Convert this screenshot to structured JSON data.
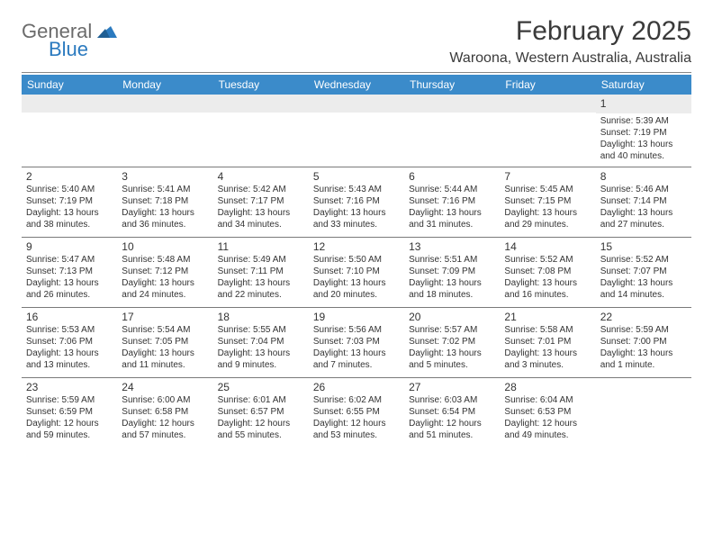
{
  "logo": {
    "word1": "General",
    "word2": "Blue"
  },
  "title": "February 2025",
  "location": "Waroona, Western Australia, Australia",
  "colors": {
    "header_bg": "#3b8bca",
    "header_text": "#ffffff",
    "shade_bg": "#ececec",
    "rule": "#7a7a7a",
    "text": "#333333",
    "logo_gray": "#6b6b6b",
    "logo_blue": "#2b7abf"
  },
  "day_headers": [
    "Sunday",
    "Monday",
    "Tuesday",
    "Wednesday",
    "Thursday",
    "Friday",
    "Saturday"
  ],
  "weeks": [
    [
      null,
      null,
      null,
      null,
      null,
      null,
      {
        "n": "1",
        "sr": "Sunrise: 5:39 AM",
        "ss": "Sunset: 7:19 PM",
        "dl": "Daylight: 13 hours and 40 minutes."
      }
    ],
    [
      {
        "n": "2",
        "sr": "Sunrise: 5:40 AM",
        "ss": "Sunset: 7:19 PM",
        "dl": "Daylight: 13 hours and 38 minutes."
      },
      {
        "n": "3",
        "sr": "Sunrise: 5:41 AM",
        "ss": "Sunset: 7:18 PM",
        "dl": "Daylight: 13 hours and 36 minutes."
      },
      {
        "n": "4",
        "sr": "Sunrise: 5:42 AM",
        "ss": "Sunset: 7:17 PM",
        "dl": "Daylight: 13 hours and 34 minutes."
      },
      {
        "n": "5",
        "sr": "Sunrise: 5:43 AM",
        "ss": "Sunset: 7:16 PM",
        "dl": "Daylight: 13 hours and 33 minutes."
      },
      {
        "n": "6",
        "sr": "Sunrise: 5:44 AM",
        "ss": "Sunset: 7:16 PM",
        "dl": "Daylight: 13 hours and 31 minutes."
      },
      {
        "n": "7",
        "sr": "Sunrise: 5:45 AM",
        "ss": "Sunset: 7:15 PM",
        "dl": "Daylight: 13 hours and 29 minutes."
      },
      {
        "n": "8",
        "sr": "Sunrise: 5:46 AM",
        "ss": "Sunset: 7:14 PM",
        "dl": "Daylight: 13 hours and 27 minutes."
      }
    ],
    [
      {
        "n": "9",
        "sr": "Sunrise: 5:47 AM",
        "ss": "Sunset: 7:13 PM",
        "dl": "Daylight: 13 hours and 26 minutes."
      },
      {
        "n": "10",
        "sr": "Sunrise: 5:48 AM",
        "ss": "Sunset: 7:12 PM",
        "dl": "Daylight: 13 hours and 24 minutes."
      },
      {
        "n": "11",
        "sr": "Sunrise: 5:49 AM",
        "ss": "Sunset: 7:11 PM",
        "dl": "Daylight: 13 hours and 22 minutes."
      },
      {
        "n": "12",
        "sr": "Sunrise: 5:50 AM",
        "ss": "Sunset: 7:10 PM",
        "dl": "Daylight: 13 hours and 20 minutes."
      },
      {
        "n": "13",
        "sr": "Sunrise: 5:51 AM",
        "ss": "Sunset: 7:09 PM",
        "dl": "Daylight: 13 hours and 18 minutes."
      },
      {
        "n": "14",
        "sr": "Sunrise: 5:52 AM",
        "ss": "Sunset: 7:08 PM",
        "dl": "Daylight: 13 hours and 16 minutes."
      },
      {
        "n": "15",
        "sr": "Sunrise: 5:52 AM",
        "ss": "Sunset: 7:07 PM",
        "dl": "Daylight: 13 hours and 14 minutes."
      }
    ],
    [
      {
        "n": "16",
        "sr": "Sunrise: 5:53 AM",
        "ss": "Sunset: 7:06 PM",
        "dl": "Daylight: 13 hours and 13 minutes."
      },
      {
        "n": "17",
        "sr": "Sunrise: 5:54 AM",
        "ss": "Sunset: 7:05 PM",
        "dl": "Daylight: 13 hours and 11 minutes."
      },
      {
        "n": "18",
        "sr": "Sunrise: 5:55 AM",
        "ss": "Sunset: 7:04 PM",
        "dl": "Daylight: 13 hours and 9 minutes."
      },
      {
        "n": "19",
        "sr": "Sunrise: 5:56 AM",
        "ss": "Sunset: 7:03 PM",
        "dl": "Daylight: 13 hours and 7 minutes."
      },
      {
        "n": "20",
        "sr": "Sunrise: 5:57 AM",
        "ss": "Sunset: 7:02 PM",
        "dl": "Daylight: 13 hours and 5 minutes."
      },
      {
        "n": "21",
        "sr": "Sunrise: 5:58 AM",
        "ss": "Sunset: 7:01 PM",
        "dl": "Daylight: 13 hours and 3 minutes."
      },
      {
        "n": "22",
        "sr": "Sunrise: 5:59 AM",
        "ss": "Sunset: 7:00 PM",
        "dl": "Daylight: 13 hours and 1 minute."
      }
    ],
    [
      {
        "n": "23",
        "sr": "Sunrise: 5:59 AM",
        "ss": "Sunset: 6:59 PM",
        "dl": "Daylight: 12 hours and 59 minutes."
      },
      {
        "n": "24",
        "sr": "Sunrise: 6:00 AM",
        "ss": "Sunset: 6:58 PM",
        "dl": "Daylight: 12 hours and 57 minutes."
      },
      {
        "n": "25",
        "sr": "Sunrise: 6:01 AM",
        "ss": "Sunset: 6:57 PM",
        "dl": "Daylight: 12 hours and 55 minutes."
      },
      {
        "n": "26",
        "sr": "Sunrise: 6:02 AM",
        "ss": "Sunset: 6:55 PM",
        "dl": "Daylight: 12 hours and 53 minutes."
      },
      {
        "n": "27",
        "sr": "Sunrise: 6:03 AM",
        "ss": "Sunset: 6:54 PM",
        "dl": "Daylight: 12 hours and 51 minutes."
      },
      {
        "n": "28",
        "sr": "Sunrise: 6:04 AM",
        "ss": "Sunset: 6:53 PM",
        "dl": "Daylight: 12 hours and 49 minutes."
      },
      null
    ]
  ]
}
